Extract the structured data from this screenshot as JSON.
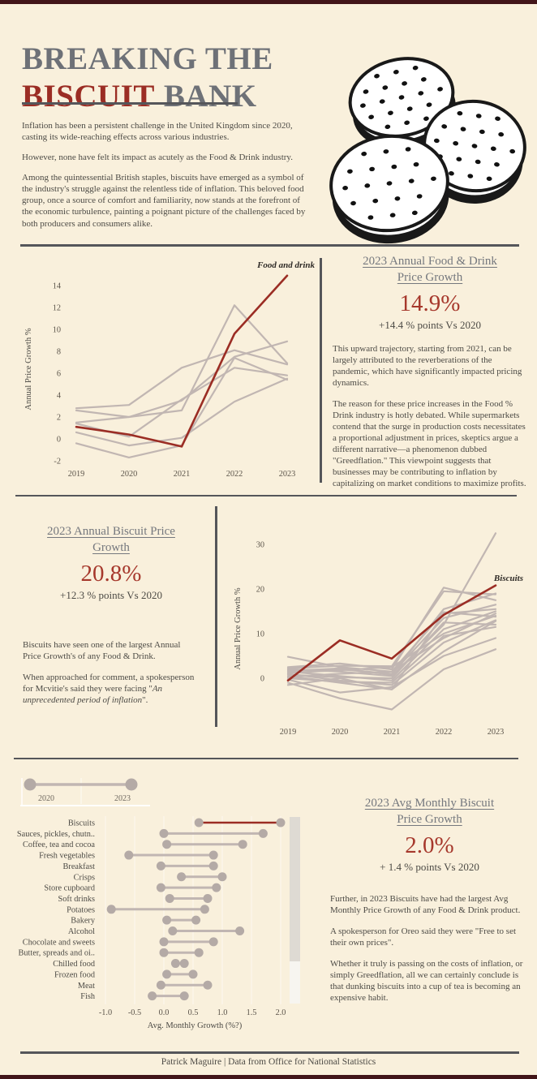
{
  "page": {
    "colors": {
      "background": "#f9f0dc",
      "accent_bar": "#421519",
      "divider": "#55565a",
      "title_gray": "#6e7177",
      "accent_red": "#9b2d24",
      "stat_red": "#a6382c",
      "gray_line": "#c1b6b2",
      "dot_gray": "#b4aaa6",
      "scrollbar_dark": "#dedad3",
      "scrollbar_light": "#f7f5f0"
    }
  },
  "header": {
    "title_line1": "BREAKING THE",
    "title_word_red": "BISCUIT",
    "title_word_gray": "BANK",
    "paragraphs": [
      "Inflation has been a persistent challenge in the United Kingdom since 2020, casting its wide-reaching effects across various industries.",
      "However, none have felt its impact as acutely as the Food & Drink industry.",
      "Among the quintessential British staples, biscuits have emerged as a symbol of the industry's struggle against the relentless tide of inflation. This beloved food group, once a source of comfort and familiarity, now stands at the forefront of the economic turbulence, painting a poignant picture of the challenges faced by both producers and consumers alike."
    ]
  },
  "sections": {
    "food_drink": {
      "heading": "2023 Annual Food & Drink Price Growth",
      "stat_value": "14.9%",
      "stat_caption": "+14.4 % points Vs 2020",
      "paragraphs": [
        "This upward trajectory, starting from 2021, can be largely attributed to the reverberations of the pandemic, which have significantly impacted pricing dynamics.",
        "The reason for these price increases in the Food % Drink industry is hotly debated. While supermarkets contend that the surge in production costs necessitates a proportional adjustment in prices, skeptics argue a different narrative—a phenomenon dubbed \"Greedflation.\" This viewpoint suggests that businesses may be contributing to inflation by capitalizing on market conditions to maximize profits."
      ]
    },
    "biscuit_annual": {
      "heading": "2023 Annual Biscuit Price Growth",
      "stat_value": "20.8%",
      "stat_caption": "+12.3 % points Vs 2020",
      "paragraph1": "Biscuits have seen one of the largest Annual Price Growth's of any Food & Drink.",
      "paragraph2_before": "When approached for comment, a spokesperson for Mcvitie's said they were facing \"",
      "paragraph2_italic": "An unprecedented period of inflation",
      "paragraph2_after": "\"."
    },
    "biscuit_monthly": {
      "heading": "2023 Avg Monthly Biscuit Price Growth",
      "stat_value": "2.0%",
      "stat_caption": "+ 1.4 % points Vs 2020",
      "paragraphs": [
        "Further, in 2023 Biscuits have had the largest Avg Monthly Price Growth of any Food & Drink product.",
        "A spokesperson for Oreo said they were \"Free to set their own prices\".",
        "Whether it truly is passing on the costs of inflation, or simply Greedflation, all we can certainly conclude is that dunking biscuits into a cup of tea is becoming an expensive habit."
      ]
    }
  },
  "footer": {
    "credit": "Patrick Maguire | Data from Office for National Statistics"
  },
  "chart_data": [
    {
      "type": "line",
      "title": "",
      "xlabel": "",
      "ylabel": "Annual Price Growth %",
      "x": [
        2019,
        2020,
        2021,
        2022,
        2023
      ],
      "yticks": [
        -2,
        0,
        2,
        4,
        6,
        8,
        10,
        12,
        14
      ],
      "ylim": [
        -3,
        16
      ],
      "grid": false,
      "annotation": "Food and drink",
      "series": [
        {
          "name": "Food and drink",
          "highlight": true,
          "values": [
            1.1,
            0.4,
            -0.7,
            9.6,
            14.9
          ]
        },
        {
          "name": "category-a",
          "highlight": false,
          "values": [
            2.8,
            3.1,
            6.5,
            8.1,
            6.8
          ]
        },
        {
          "name": "category-b",
          "highlight": false,
          "values": [
            2.6,
            2.0,
            2.6,
            12.2,
            6.9
          ]
        },
        {
          "name": "category-c",
          "highlight": false,
          "values": [
            1.5,
            2.0,
            3.5,
            7.5,
            8.9
          ]
        },
        {
          "name": "category-d",
          "highlight": false,
          "values": [
            1.4,
            0.2,
            3.6,
            6.5,
            5.8
          ]
        },
        {
          "name": "category-e",
          "highlight": false,
          "values": [
            0.6,
            -0.6,
            0.1,
            3.4,
            5.5
          ]
        },
        {
          "name": "category-f",
          "highlight": false,
          "values": [
            -0.4,
            -1.7,
            -0.6,
            7.4,
            5.4
          ]
        }
      ]
    },
    {
      "type": "line",
      "title": "",
      "xlabel": "",
      "ylabel": "Annual Price Growth %",
      "x": [
        2019,
        2020,
        2021,
        2022,
        2023
      ],
      "yticks": [
        0,
        10,
        20,
        30
      ],
      "ylim": [
        -8,
        34
      ],
      "grid": false,
      "annotation": "Biscuits",
      "series": [
        {
          "name": "Biscuits",
          "highlight": true,
          "values": [
            -0.5,
            8.5,
            4.4,
            14.2,
            20.8
          ]
        },
        {
          "name": "product-a",
          "highlight": false,
          "values": [
            4.8,
            2.5,
            1.5,
            9.0,
            14.5
          ]
        },
        {
          "name": "product-b",
          "highlight": false,
          "values": [
            2.5,
            3.3,
            2.0,
            20.3,
            17.5
          ]
        },
        {
          "name": "product-c",
          "highlight": false,
          "values": [
            2.2,
            2.8,
            2.7,
            19.5,
            18.8
          ]
        },
        {
          "name": "product-d",
          "highlight": false,
          "values": [
            2.0,
            1.5,
            0.5,
            12.0,
            32.5
          ]
        },
        {
          "name": "product-e",
          "highlight": false,
          "values": [
            1.8,
            2.0,
            1.0,
            13.5,
            16.5
          ]
        },
        {
          "name": "product-f",
          "highlight": false,
          "values": [
            1.6,
            2.2,
            0.8,
            15.5,
            19.0
          ]
        },
        {
          "name": "product-g",
          "highlight": false,
          "values": [
            1.5,
            0.5,
            -0.5,
            11.0,
            15.0
          ]
        },
        {
          "name": "product-h",
          "highlight": false,
          "values": [
            1.2,
            1.8,
            2.5,
            10.0,
            14.0
          ]
        },
        {
          "name": "product-i",
          "highlight": false,
          "values": [
            1.0,
            -0.5,
            -1.5,
            8.0,
            13.0
          ]
        },
        {
          "name": "product-j",
          "highlight": false,
          "values": [
            0.8,
            0.2,
            0.0,
            12.5,
            12.0
          ]
        },
        {
          "name": "product-k",
          "highlight": false,
          "values": [
            0.5,
            -1.0,
            -2.5,
            6.0,
            12.8
          ]
        },
        {
          "name": "product-l",
          "highlight": false,
          "values": [
            0.3,
            1.0,
            1.5,
            14.8,
            13.8
          ]
        },
        {
          "name": "product-m",
          "highlight": false,
          "values": [
            0.0,
            -0.8,
            -1.0,
            9.5,
            11.5
          ]
        },
        {
          "name": "product-n",
          "highlight": false,
          "values": [
            -0.3,
            -3.2,
            -2.0,
            5.0,
            9.0
          ]
        },
        {
          "name": "product-o",
          "highlight": false,
          "values": [
            -1.0,
            -4.5,
            -7.0,
            2.0,
            6.5
          ]
        },
        {
          "name": "product-p",
          "highlight": false,
          "values": [
            -1.5,
            0.0,
            -2.5,
            14.5,
            15.5
          ]
        }
      ]
    },
    {
      "type": "dumbbell",
      "title": "",
      "xlabel": "Avg. Monthly Growth (%?)",
      "xticks": [
        {
          "label": "-1.0",
          "value": -1.0
        },
        {
          "label": "-0.5",
          "value": -0.5
        },
        {
          "label": "0.0",
          "value": 0.0
        },
        {
          "label": "0.5",
          "value": 0.5
        },
        {
          "label": "1.0",
          "value": 1.0
        },
        {
          "label": "1.5",
          "value": 1.5
        },
        {
          "label": "2.0",
          "value": 2.0
        }
      ],
      "legend": {
        "start_label": "2020",
        "end_label": "2023"
      },
      "highlight_category": "Biscuits",
      "categories": [
        "Biscuits",
        "Sauces, pickles, chutn..",
        "Coffee, tea and cocoa",
        "Fresh vegetables",
        "Breakfast",
        "Crisps",
        "Store cupboard",
        "Soft drinks",
        "Potatoes",
        "Bakery",
        "Alcohol",
        "Chocolate and sweets",
        "Butter, spreads and oi..",
        "Chilled food",
        "Frozen food",
        "Meat",
        "Fish"
      ],
      "series": [
        {
          "name": "2020",
          "values": [
            0.6,
            0.0,
            0.05,
            -0.6,
            -0.05,
            0.3,
            -0.05,
            0.1,
            -0.9,
            0.05,
            0.15,
            0.0,
            0.0,
            0.2,
            0.05,
            -0.05,
            -0.2
          ]
        },
        {
          "name": "2023",
          "values": [
            2.0,
            1.7,
            1.35,
            0.85,
            0.85,
            1.0,
            0.9,
            0.75,
            0.7,
            0.55,
            1.3,
            0.85,
            0.6,
            0.35,
            0.5,
            0.75,
            0.35
          ]
        }
      ]
    }
  ]
}
